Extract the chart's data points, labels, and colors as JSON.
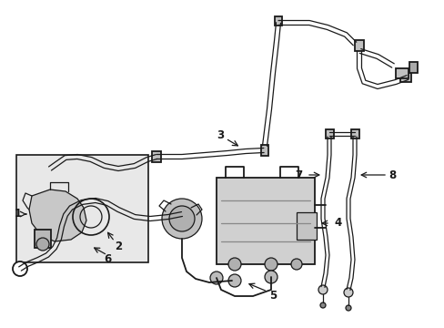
{
  "background_color": "#ffffff",
  "line_color": "#1a1a1a",
  "gray_fill": "#d4d4d4",
  "light_gray": "#e8e8e8",
  "figsize": [
    4.89,
    3.6
  ],
  "dpi": 100
}
